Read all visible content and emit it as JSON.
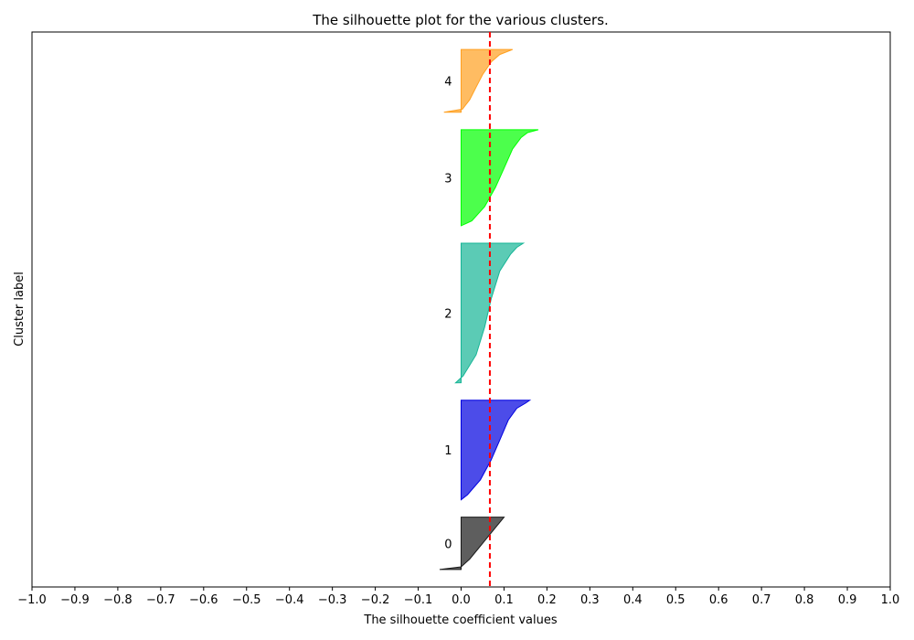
{
  "chart_data": {
    "type": "area",
    "title": "The silhouette plot for the various clusters.",
    "xlabel": "The silhouette coefficient values",
    "ylabel": "Cluster label",
    "xlim": [
      -1.0,
      1.0
    ],
    "xticks": [
      "−1.0",
      "−0.9",
      "−0.8",
      "−0.7",
      "−0.6",
      "−0.5",
      "−0.4",
      "−0.3",
      "−0.2",
      "−0.1",
      "0.0",
      "0.1",
      "0.2",
      "0.3",
      "0.4",
      "0.5",
      "0.6",
      "0.7",
      "0.8",
      "0.9",
      "1.0"
    ],
    "average_silhouette_score": 0.067,
    "average_line_color": "#ff0000",
    "clusters": [
      {
        "label": "0",
        "color": "#1a1a1a",
        "samples": 30,
        "profile": [
          [
            0,
            -0.05
          ],
          [
            0.05,
            0
          ],
          [
            0.2,
            0.02
          ],
          [
            0.4,
            0.04
          ],
          [
            0.6,
            0.06
          ],
          [
            0.8,
            0.08
          ],
          [
            0.95,
            0.095
          ],
          [
            1,
            0.1
          ]
        ]
      },
      {
        "label": "1",
        "color": "#0000e0",
        "samples": 57,
        "profile": [
          [
            0,
            0
          ],
          [
            0.05,
            0.015
          ],
          [
            0.2,
            0.045
          ],
          [
            0.4,
            0.07
          ],
          [
            0.6,
            0.09
          ],
          [
            0.8,
            0.11
          ],
          [
            0.92,
            0.13
          ],
          [
            0.97,
            0.15
          ],
          [
            1,
            0.16
          ]
        ]
      },
      {
        "label": "2",
        "color": "#16b596",
        "samples": 80,
        "profile": [
          [
            0,
            -0.013
          ],
          [
            0.05,
            0.005
          ],
          [
            0.2,
            0.035
          ],
          [
            0.4,
            0.055
          ],
          [
            0.6,
            0.07
          ],
          [
            0.8,
            0.09
          ],
          [
            0.92,
            0.115
          ],
          [
            0.97,
            0.13
          ],
          [
            1,
            0.145
          ]
        ]
      },
      {
        "label": "3",
        "color": "#00ff00",
        "samples": 55,
        "profile": [
          [
            0,
            0
          ],
          [
            0.05,
            0.025
          ],
          [
            0.2,
            0.055
          ],
          [
            0.4,
            0.08
          ],
          [
            0.6,
            0.1
          ],
          [
            0.8,
            0.12
          ],
          [
            0.92,
            0.14
          ],
          [
            0.97,
            0.155
          ],
          [
            1,
            0.18
          ]
        ]
      },
      {
        "label": "4",
        "color": "#ffa020",
        "samples": 36,
        "profile": [
          [
            0,
            -0.04
          ],
          [
            0.05,
            0.003
          ],
          [
            0.2,
            0.02
          ],
          [
            0.4,
            0.035
          ],
          [
            0.6,
            0.05
          ],
          [
            0.8,
            0.07
          ],
          [
            0.92,
            0.09
          ],
          [
            1,
            0.12
          ]
        ]
      }
    ],
    "grid": false,
    "legend": "none"
  }
}
